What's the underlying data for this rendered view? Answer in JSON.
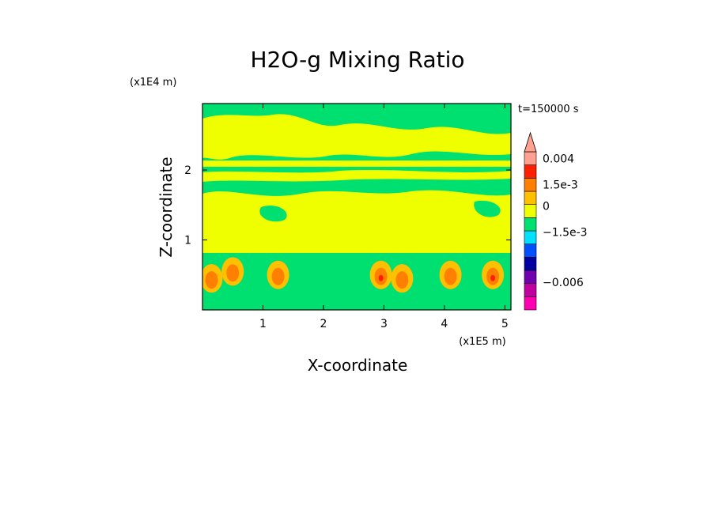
{
  "chart_data": {
    "type": "heatmap",
    "title": "H2O-g Mixing Ratio",
    "xlabel": "X-coordinate",
    "ylabel": "Z-coordinate",
    "x_unit": "(x1E5 m)",
    "y_unit": "(x1E4 m)",
    "time_label": "t=150000 s",
    "xlim": [
      0,
      5.1
    ],
    "ylim": [
      0,
      2.95
    ],
    "x_ticks": [
      {
        "value": 1,
        "label": "1"
      },
      {
        "value": 2,
        "label": "2"
      },
      {
        "value": 3,
        "label": "3"
      },
      {
        "value": 4,
        "label": "4"
      },
      {
        "value": 5,
        "label": "5"
      }
    ],
    "y_ticks": [
      {
        "value": 1,
        "label": "1"
      },
      {
        "value": 2,
        "label": "2"
      }
    ],
    "colorbar": {
      "levels": [
        {
          "color": "#ff00b0"
        },
        {
          "color": "#c000a0"
        },
        {
          "color": "#7000b0"
        },
        {
          "color": "#0000a0"
        },
        {
          "color": "#0050ff"
        },
        {
          "color": "#00e0ff"
        },
        {
          "color": "#00e070"
        },
        {
          "color": "#f0ff00"
        },
        {
          "color": "#ffc000"
        },
        {
          "color": "#ff8000"
        },
        {
          "color": "#ff2000"
        },
        {
          "color": "#ffa090"
        }
      ],
      "labels": [
        {
          "text": "0.004",
          "index": 11
        },
        {
          "text": "1.5e-3",
          "index": 9
        },
        {
          "text": "0",
          "index": 7.4
        },
        {
          "text": "−1.5e-3",
          "index": 5.4
        },
        {
          "text": "−0.006",
          "index": 1.6
        }
      ]
    },
    "colors": {
      "purple": "#7000b0",
      "navy": "#0000a0",
      "blue": "#0050ff",
      "cyan": "#00e0ff",
      "green": "#00e070",
      "yellow": "#f0ff00",
      "orange": "#ff8000",
      "lightorange": "#ffc000",
      "red": "#ff2000"
    }
  }
}
